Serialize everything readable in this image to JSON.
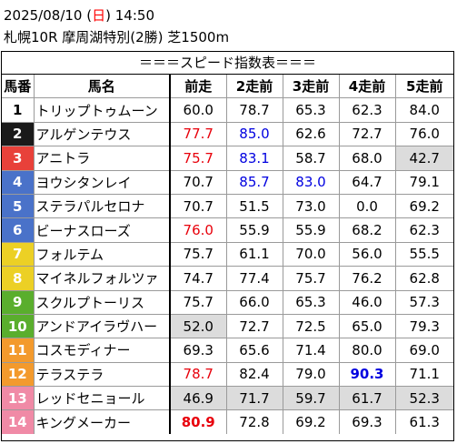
{
  "header": {
    "date": "2025/08/10",
    "open_paren": "(",
    "weekday": "日",
    "close_paren": ")",
    "time": "14:50",
    "race_info": "札幌10R 摩周湖特別(2勝) 芝1500m"
  },
  "table_title": "＝＝＝スピード指数表＝＝＝",
  "columns": [
    "馬番",
    "馬名",
    "前走",
    "2走前",
    "3走前",
    "4走前",
    "5走前"
  ],
  "horses": [
    {
      "no": "1",
      "no_bg": "#ffffff",
      "no_fg": "#000000",
      "name": "トリップトゥムーン",
      "vals": [
        "60.0",
        "78.7",
        "65.3",
        "62.3",
        "84.0"
      ],
      "styles": [
        "",
        "",
        "",
        "",
        ""
      ]
    },
    {
      "no": "2",
      "no_bg": "#1a1a1a",
      "no_fg": "#ffffff",
      "name": "アルゲンテウス",
      "vals": [
        "77.7",
        "85.0",
        "62.6",
        "72.7",
        "76.0"
      ],
      "styles": [
        "red",
        "blue",
        "",
        "",
        ""
      ]
    },
    {
      "no": "3",
      "no_bg": "#e8413a",
      "no_fg": "#ffffff",
      "name": "アニトラ",
      "vals": [
        "75.7",
        "83.1",
        "58.7",
        "68.0",
        "42.7"
      ],
      "styles": [
        "red",
        "blue",
        "",
        "",
        "gray"
      ]
    },
    {
      "no": "4",
      "no_bg": "#4a72c9",
      "no_fg": "#ffffff",
      "name": "ヨウシタンレイ",
      "vals": [
        "70.7",
        "85.7",
        "83.0",
        "64.7",
        "79.1"
      ],
      "styles": [
        "",
        "blue",
        "blue",
        "",
        ""
      ]
    },
    {
      "no": "5",
      "no_bg": "#4a72c9",
      "no_fg": "#ffffff",
      "name": "ステラパルセロナ",
      "vals": [
        "70.7",
        "51.5",
        "73.0",
        "0.0",
        "69.2"
      ],
      "styles": [
        "",
        "",
        "",
        "",
        ""
      ]
    },
    {
      "no": "6",
      "no_bg": "#4a72c9",
      "no_fg": "#ffffff",
      "name": "ビーナスローズ",
      "vals": [
        "76.0",
        "55.9",
        "55.9",
        "68.2",
        "62.3"
      ],
      "styles": [
        "red",
        "",
        "",
        "",
        ""
      ]
    },
    {
      "no": "7",
      "no_bg": "#ecd025",
      "no_fg": "#ffffff",
      "name": "フォルテム",
      "vals": [
        "75.7",
        "61.1",
        "70.0",
        "56.0",
        "55.5"
      ],
      "styles": [
        "",
        "",
        "",
        "",
        ""
      ]
    },
    {
      "no": "8",
      "no_bg": "#ecd025",
      "no_fg": "#ffffff",
      "name": "マイネルフォルツァ",
      "vals": [
        "74.7",
        "77.4",
        "75.7",
        "76.2",
        "62.8"
      ],
      "styles": [
        "",
        "",
        "",
        "",
        ""
      ]
    },
    {
      "no": "9",
      "no_bg": "#5aae2d",
      "no_fg": "#ffffff",
      "name": "スクルプトーリス",
      "vals": [
        "75.7",
        "66.0",
        "65.3",
        "46.0",
        "57.3"
      ],
      "styles": [
        "",
        "",
        "",
        "",
        ""
      ]
    },
    {
      "no": "10",
      "no_bg": "#5aae2d",
      "no_fg": "#ffffff",
      "name": "アンドアイラヴハー",
      "vals": [
        "52.0",
        "72.7",
        "72.5",
        "65.0",
        "79.3"
      ],
      "styles": [
        "gray",
        "",
        "",
        "",
        ""
      ]
    },
    {
      "no": "11",
      "no_bg": "#f39a2d",
      "no_fg": "#ffffff",
      "name": "コスモディナー",
      "vals": [
        "69.3",
        "65.6",
        "71.4",
        "80.0",
        "69.0"
      ],
      "styles": [
        "",
        "",
        "",
        "",
        ""
      ]
    },
    {
      "no": "12",
      "no_bg": "#f39a2d",
      "no_fg": "#ffffff",
      "name": "テラステラ",
      "vals": [
        "78.7",
        "82.4",
        "79.0",
        "90.3",
        "71.1"
      ],
      "styles": [
        "red",
        "",
        "",
        "bblue",
        ""
      ]
    },
    {
      "no": "13",
      "no_bg": "#f08aa6",
      "no_fg": "#ffffff",
      "name": "レッドセニョール",
      "vals": [
        "46.9",
        "71.7",
        "59.7",
        "61.7",
        "52.3"
      ],
      "styles": [
        "gray",
        "gray",
        "gray",
        "gray",
        "gray"
      ]
    },
    {
      "no": "14",
      "no_bg": "#f08aa6",
      "no_fg": "#ffffff",
      "name": "キングメーカー",
      "vals": [
        "80.9",
        "72.8",
        "69.2",
        "69.3",
        "61.3"
      ],
      "styles": [
        "bred",
        "",
        "",
        "",
        ""
      ]
    }
  ]
}
